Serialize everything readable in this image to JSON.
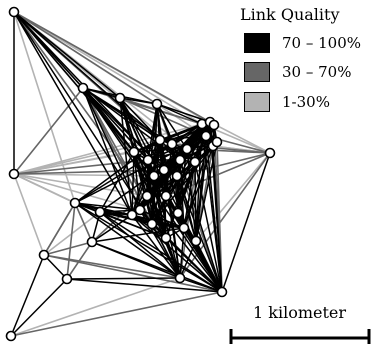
{
  "legend": {
    "title": "Link Quality",
    "items": [
      {
        "label": "70 – 100%",
        "color": "#000000"
      },
      {
        "label": "30 – 70%",
        "color": "#666666"
      },
      {
        "label": "1-30%",
        "color": "#b3b3b3"
      }
    ]
  },
  "scale": {
    "label": "1 kilometer"
  },
  "colors": {
    "strong": "#000000",
    "medium": "#666666",
    "weak": "#b3b3b3",
    "node_fill": "#ffffff",
    "node_stroke": "#000000"
  }
}
